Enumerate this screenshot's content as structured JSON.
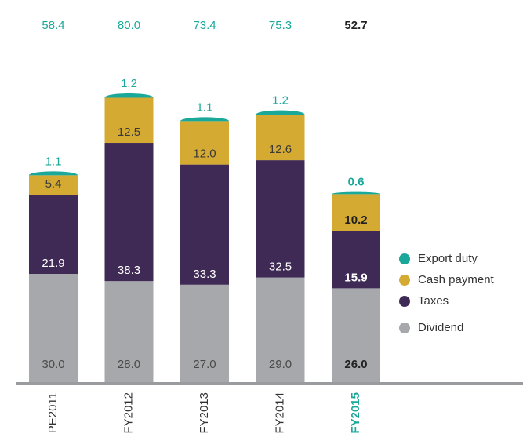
{
  "chart_data": {
    "type": "stacked_bar",
    "categories": [
      "PE2011",
      "FY2012",
      "FY2013",
      "FY2014",
      "FY2015"
    ],
    "highlight_index": 4,
    "series": [
      {
        "name": "Dividend",
        "color": "#a7a8ab",
        "label_color": "#4a4a4a",
        "values": [
          30.0,
          28.0,
          27.0,
          29.0,
          26.0
        ],
        "value_labels": [
          "30.0",
          "28.0",
          "27.0",
          "29.0",
          "26.0"
        ]
      },
      {
        "name": "Taxes",
        "color": "#3f2a56",
        "label_color": "#ffffff",
        "values": [
          21.9,
          38.3,
          33.3,
          32.5,
          15.9
        ],
        "value_labels": [
          "21.9",
          "38.3",
          "33.3",
          "32.5",
          "15.9"
        ]
      },
      {
        "name": "Cash payment",
        "color": "#d4aa33",
        "label_color": "#3a3a3a",
        "values": [
          5.4,
          12.5,
          12.0,
          12.6,
          10.2
        ],
        "value_labels": [
          "5.4",
          "12.5",
          "12.0",
          "12.6",
          "10.2"
        ]
      },
      {
        "name": "Export duty",
        "color": "#1aa89a",
        "label_color": "#1aa89a",
        "values": [
          1.1,
          1.2,
          1.1,
          1.2,
          0.6
        ],
        "value_labels": [
          "1.1",
          "1.2",
          "1.1",
          "1.2",
          "0.6"
        ]
      }
    ],
    "totals": {
      "values": [
        58.4,
        80.0,
        73.4,
        75.3,
        52.7
      ],
      "value_labels": [
        "58.4",
        "80.0",
        "73.4",
        "75.3",
        "52.7"
      ],
      "color": "#1aa89a"
    }
  }
}
